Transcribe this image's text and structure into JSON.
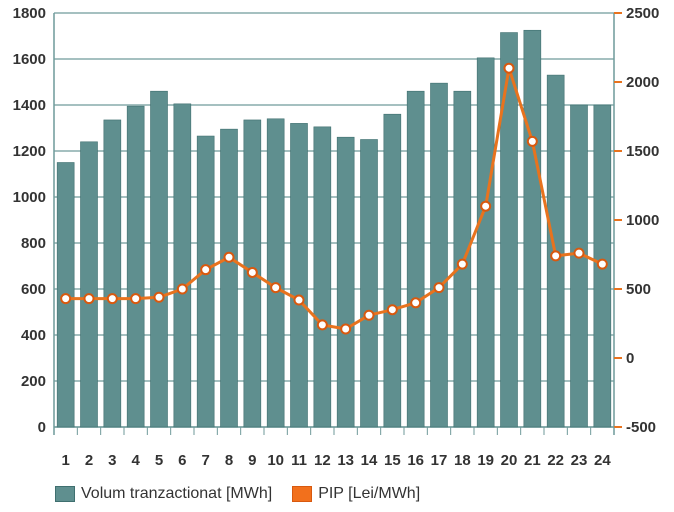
{
  "chart_data": {
    "type": "bar",
    "categories": [
      "1",
      "2",
      "3",
      "4",
      "5",
      "6",
      "7",
      "8",
      "9",
      "10",
      "11",
      "12",
      "13",
      "14",
      "15",
      "16",
      "17",
      "18",
      "19",
      "20",
      "21",
      "22",
      "23",
      "24"
    ],
    "series": [
      {
        "name": "Volum tranzactionat [MWh]",
        "type": "bar",
        "axis": "left",
        "color": "#5f8f8f",
        "values": [
          1150,
          1240,
          1335,
          1395,
          1460,
          1405,
          1265,
          1295,
          1335,
          1340,
          1320,
          1305,
          1260,
          1250,
          1360,
          1460,
          1495,
          1460,
          1605,
          1715,
          1725,
          1530,
          1400,
          1400
        ]
      },
      {
        "name": "PIP [Lei/MWh]",
        "type": "line",
        "axis": "right",
        "color": "#e8731e",
        "values": [
          430,
          430,
          430,
          430,
          440,
          500,
          640,
          730,
          620,
          510,
          420,
          240,
          210,
          310,
          350,
          400,
          510,
          680,
          1100,
          2100,
          1570,
          740,
          760,
          680
        ]
      }
    ],
    "y_left": {
      "ticks": [
        0,
        200,
        400,
        600,
        800,
        1000,
        1200,
        1400,
        1600,
        1800
      ],
      "ylim": [
        0,
        1800
      ]
    },
    "y_right": {
      "ticks": [
        -500,
        0,
        500,
        1000,
        1500,
        2000,
        2500
      ],
      "ylim": [
        -500,
        2500
      ]
    },
    "legend_position": "bottom",
    "title": "",
    "xlabel": "",
    "ylabel": ""
  },
  "legend": {
    "items": [
      {
        "label": "Volum tranzactionat [MWh]",
        "color": "#5f8f8f"
      },
      {
        "label": "PIP [Lei/MWh]",
        "color": "#f2701c"
      }
    ]
  }
}
